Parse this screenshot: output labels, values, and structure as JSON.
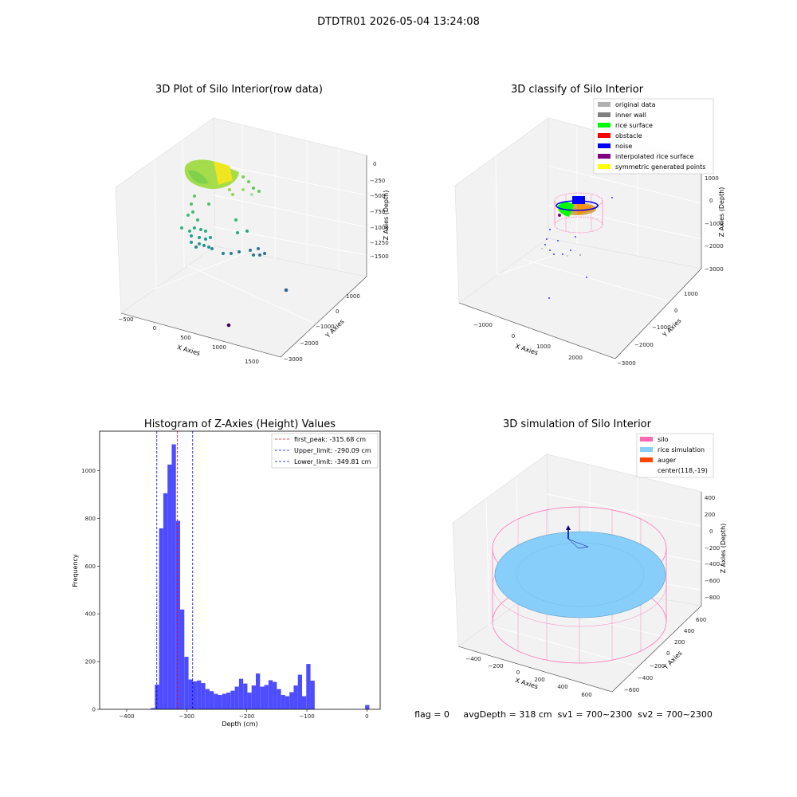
{
  "figure": {
    "suptitle": "DTDTR01 2026-05-04 13:24:08",
    "footer": "flag = 0     avgDepth = 318 cm  sv1 = 700~2300  sv2 = 700~2300"
  },
  "colors": {
    "hist": "#4d4dff",
    "peak": "#ff0000",
    "limit": "#0000cc",
    "silo": "#ff69b4",
    "rice": "#87cefa",
    "auger": "#ff4500",
    "original": "#b0b0b0",
    "inner_wall": "#808080",
    "rice_surface": "#00ff00",
    "obstacle": "#ff0000",
    "noise": "#0000ff",
    "interpolated": "#800080",
    "symmetric": "#ffff00"
  },
  "raw": {
    "title": "3D Plot of Silo Interior(row data)",
    "xlabel": "X Axies",
    "ylabel": "Y Axies",
    "zlabel": "Z Axies (Depth)",
    "xticks": [
      "−500",
      "0",
      "500",
      "1000",
      "1500"
    ],
    "yticks": [
      "1000",
      "0",
      "−1000",
      "−2000",
      "−3000"
    ],
    "zticks": [
      "0",
      "−250",
      "−500",
      "−750",
      "−1000",
      "−1250",
      "−1500"
    ]
  },
  "classify": {
    "title": "3D classify of Silo Interior",
    "xlabel": "X Axies",
    "ylabel": "Y Axies",
    "zlabel": "Z Axies (Depth)",
    "xticks": [
      "−1000",
      "0",
      "1000",
      "2000"
    ],
    "yticks": [
      "1000",
      "0",
      "−1000",
      "−2000",
      "−3000"
    ],
    "zticks": [
      "1000",
      "0",
      "−1000",
      "−2000",
      "−3000"
    ],
    "legend": [
      "original data",
      "inner wall",
      "rice surface",
      "obstacle",
      "noise",
      "interpolated rice surface",
      "symmetric generated points"
    ]
  },
  "simulation": {
    "title": "3D simulation of Silo Interior",
    "xlabel": "X Axies",
    "ylabel": "Y Axies",
    "zlabel": "Z Axies (Depth)",
    "xticks": [
      "−400",
      "−200",
      "0",
      "200",
      "400",
      "600"
    ],
    "yticks": [
      "600",
      "400",
      "200",
      "0",
      "−200",
      "−400",
      "−600"
    ],
    "zticks": [
      "400",
      "200",
      "0",
      "−200",
      "−400",
      "−600",
      "−800"
    ],
    "legend": [
      "silo",
      "rice simulation",
      "auger",
      "center(118,-19)"
    ]
  },
  "chart_data": [
    {
      "type": "bar",
      "title": "Histogram of Z-Axies (Height) Values",
      "xlabel": "Depth (cm)",
      "ylabel": "Frequency",
      "xlim": [
        -445,
        22
      ],
      "ylim": [
        0,
        1165
      ],
      "xticks": [
        -400,
        -300,
        -200,
        -100,
        0
      ],
      "yticks": [
        0,
        200,
        400,
        600,
        800,
        1000
      ],
      "bin_width": 7,
      "bin_starts": [
        -360,
        -353,
        -346,
        -339,
        -332,
        -325,
        -318,
        -311,
        -304,
        -297,
        -290,
        -283,
        -276,
        -269,
        -262,
        -255,
        -248,
        -241,
        -234,
        -227,
        -220,
        -213,
        -206,
        -199,
        -192,
        -185,
        -178,
        -171,
        -164,
        -157,
        -150,
        -143,
        -136,
        -129,
        -122,
        -115,
        -108,
        -101,
        -94,
        -87,
        -80,
        -73,
        -66,
        -59,
        -52,
        -45,
        -38,
        -31,
        -24,
        -17,
        -10,
        -3,
        0
      ],
      "values": [
        5,
        103,
        758,
        905,
        1025,
        1110,
        790,
        418,
        220,
        125,
        117,
        121,
        110,
        85,
        76,
        65,
        60,
        65,
        70,
        78,
        95,
        128,
        108,
        70,
        100,
        150,
        95,
        102,
        122,
        115,
        85,
        60,
        55,
        72,
        100,
        145,
        55,
        190,
        120,
        0,
        0,
        0,
        0,
        0,
        0,
        0,
        0,
        0,
        0,
        0,
        0,
        18,
        0
      ],
      "legend": [
        {
          "label": "first_peak: -315.68 cm",
          "value": -315.68
        },
        {
          "label": "Upper_limit: -290.09 cm",
          "value": -290.09
        },
        {
          "label": "Lower_limit: -349.81 cm",
          "value": -349.81
        }
      ]
    }
  ]
}
